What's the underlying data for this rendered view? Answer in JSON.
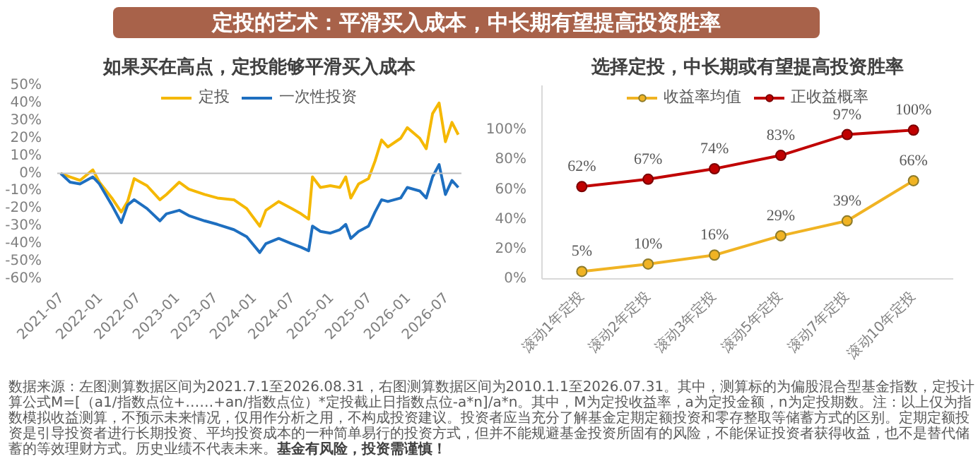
{
  "chart_data": [
    {
      "type": "line",
      "title": "定投的艺术：平滑买入成本，中长期有望提高投资胜率",
      "subtitle": "如果买在高点，定投能够平滑买入成本",
      "x": [
        "2021-07-01",
        "2021-08-15",
        "2021-10-01",
        "2021-12-01",
        "2022-01-01",
        "2022-03-01",
        "2022-04-15",
        "2022-05-15",
        "2022-06-15",
        "2022-08-15",
        "2022-10-15",
        "2022-11-15",
        "2023-01-15",
        "2023-03-01",
        "2023-05-15",
        "2023-07-15",
        "2023-10-01",
        "2023-12-01",
        "2024-02-01",
        "2024-03-01",
        "2024-05-01",
        "2024-07-01",
        "2024-08-15",
        "2024-09-20",
        "2024-10-08",
        "2024-11-15",
        "2025-01-01",
        "2025-02-15",
        "2025-03-15",
        "2025-04-08",
        "2025-05-15",
        "2025-07-01",
        "2025-08-01",
        "2025-09-01",
        "2025-10-01",
        "2025-12-01",
        "2026-01-01",
        "2026-03-01",
        "2026-04-01",
        "2026-05-01",
        "2026-06-01",
        "2026-07-01",
        "2026-08-01",
        "2026-08-31"
      ],
      "series": [
        {
          "name": "定投",
          "color": "#f5b800",
          "values": [
            0,
            -2,
            -4,
            2,
            -5,
            -14,
            -22,
            -16,
            -3,
            -7,
            -15,
            -12,
            -5,
            -9,
            -12,
            -14,
            -15,
            -20,
            -30,
            -21,
            -16,
            -20,
            -23,
            -26,
            -2,
            -8,
            -7,
            -8,
            -2,
            -14,
            -6,
            -3,
            7,
            19,
            15,
            20,
            26,
            20,
            14,
            34,
            40,
            18,
            29,
            22
          ]
        },
        {
          "name": "一次性投资",
          "color": "#1e6fc0",
          "values": [
            0,
            -5,
            -6,
            -2,
            -6,
            -18,
            -28,
            -18,
            -15,
            -20,
            -27,
            -23,
            -21,
            -24,
            -27,
            -29,
            -32,
            -36,
            -45,
            -40,
            -37,
            -40,
            -42,
            -44,
            -30,
            -33,
            -34,
            -32,
            -29,
            -37,
            -33,
            -30,
            -22,
            -15,
            -16,
            -14,
            -8,
            -10,
            -14,
            -2,
            5,
            -12,
            -4,
            -8
          ]
        }
      ],
      "xlim": [
        "2021-06-15",
        "2026-09-15"
      ],
      "xticks": [
        "2021-07",
        "2022-01",
        "2022-07",
        "2023-01",
        "2023-07",
        "2024-01",
        "2024-07",
        "2025-01",
        "2025-07",
        "2026-01",
        "2026-07"
      ],
      "ylim": [
        -60,
        50
      ],
      "yticks": [
        {
          "value": -60,
          "label": "-60%"
        },
        {
          "value": -50,
          "label": "-50%"
        },
        {
          "value": -40,
          "label": "-40%"
        },
        {
          "value": -30,
          "label": "-30%"
        },
        {
          "value": -20,
          "label": "-20%"
        },
        {
          "value": -10,
          "label": "-10%"
        },
        {
          "value": 0,
          "label": "0%"
        },
        {
          "value": 10,
          "label": "10%"
        },
        {
          "value": 20,
          "label": "20%"
        },
        {
          "value": 30,
          "label": "30%"
        },
        {
          "value": 40,
          "label": "40%"
        },
        {
          "value": 50,
          "label": "50%"
        }
      ],
      "ref_lines": [
        {
          "axis": "y",
          "value": 0,
          "label": null,
          "color": "#bfbfbf"
        }
      ],
      "legend": "top",
      "grid": false,
      "marker": "none",
      "line_style": "solid",
      "annotations": [
        "数据来源：左图测算数据区间为2021.7.1至2026.08.31，右图测算数据区间为2010.1.1至2026.07.31。其中，测算标的为偏股混合型基金指数，定投计算公式M=[（a1/指数点位+……+an/指数点位）*定投截止日指数点位-a*n]/a*n。其中，M为定投收益率，a为定投金额，n为定投期数。注：以上仅为指数模拟收益测算，不预示未来情况，仅用作分析之用，不构成投资建议。投资者应当充分了解基金定期定额投资和零存整取等储蓄方式的区别。定期定额投资是引导投资者进行长期投资、平均投资成本的一种简单易行的投资方式，但并不能规避基金投资所固有的风险，不能保证投资者获得收益，也不是替代储蓄的等效理财方式。历史业绩不代表未来。",
        "基金有风险，投资需谨慎！"
      ]
    },
    {
      "type": "line",
      "title": "选择定投，中长期或有望提高投资胜率",
      "categories": [
        "滚动1年定投",
        "滚动2年定投",
        "滚动3年定投",
        "滚动5年定投",
        "滚动7年定投",
        "滚动10年定投"
      ],
      "series": [
        {
          "name": "收益率均值",
          "color": "#f0b323",
          "values": [
            5,
            10,
            16,
            29,
            39,
            66
          ],
          "value_labels": [
            "5%",
            "10%",
            "16%",
            "29%",
            "39%",
            "66%"
          ]
        },
        {
          "name": "正收益概率",
          "color": "#c00000",
          "values": [
            62,
            67,
            74,
            83,
            97,
            100
          ],
          "value_labels": [
            "62%",
            "67%",
            "74%",
            "83%",
            "97%",
            "100%"
          ]
        }
      ],
      "ylim": [
        0,
        130
      ],
      "yticks": [
        {
          "value": 0,
          "label": "0%"
        },
        {
          "value": 20,
          "label": "20%"
        },
        {
          "value": 40,
          "label": "40%"
        },
        {
          "value": 60,
          "label": "60%"
        },
        {
          "value": 80,
          "label": "80%"
        },
        {
          "value": 100,
          "label": "100%"
        }
      ],
      "legend": "top",
      "grid": false,
      "marker": "circle",
      "line_style": "solid"
    }
  ]
}
